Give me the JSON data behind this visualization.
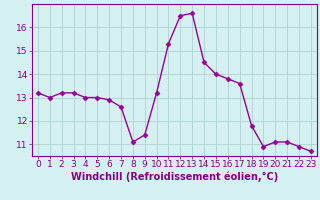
{
  "x": [
    0,
    1,
    2,
    3,
    4,
    5,
    6,
    7,
    8,
    9,
    10,
    11,
    12,
    13,
    14,
    15,
    16,
    17,
    18,
    19,
    20,
    21,
    22,
    23
  ],
  "y": [
    13.2,
    13.0,
    13.2,
    13.2,
    13.0,
    13.0,
    12.9,
    12.6,
    11.1,
    11.4,
    13.2,
    15.3,
    16.5,
    16.6,
    14.5,
    14.0,
    13.8,
    13.6,
    11.8,
    10.9,
    11.1,
    11.1,
    10.9,
    10.7
  ],
  "line_color": "#990099",
  "marker": "D",
  "marker_size": 2.5,
  "xlabel": "Windchill (Refroidissement éolien,°C)",
  "xlim": [
    -0.5,
    23.5
  ],
  "ylim": [
    10.5,
    17.0
  ],
  "yticks": [
    11,
    12,
    13,
    14,
    15,
    16
  ],
  "xticks": [
    0,
    1,
    2,
    3,
    4,
    5,
    6,
    7,
    8,
    9,
    10,
    11,
    12,
    13,
    14,
    15,
    16,
    17,
    18,
    19,
    20,
    21,
    22,
    23
  ],
  "bg_color": "#d4f0f0",
  "grid_color": "#aacccc",
  "label_color": "#880088",
  "tick_color": "#880088",
  "xlabel_fontsize": 7,
  "tick_fontsize": 6.5,
  "linewidth": 1.0
}
